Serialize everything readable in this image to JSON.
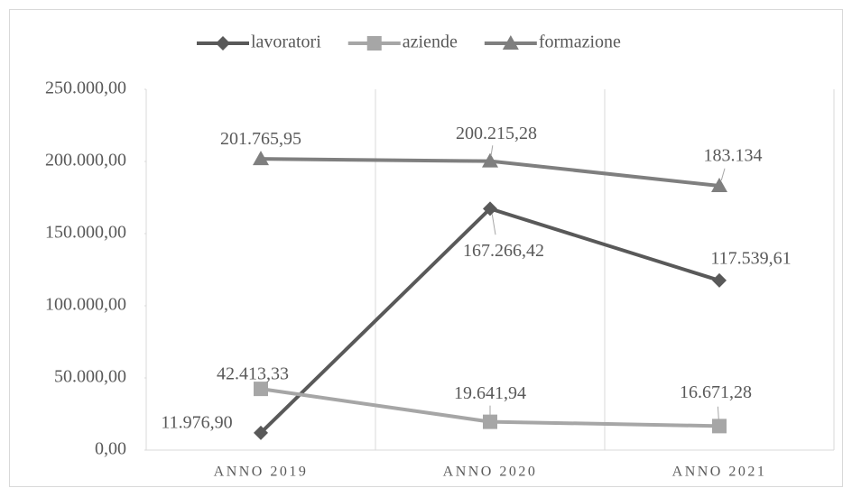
{
  "chart_data": {
    "type": "line",
    "categories": [
      "ANNO 2019",
      "ANNO 2020",
      "ANNO 2021"
    ],
    "series": [
      {
        "name": "lavoratori",
        "color": "#595959",
        "marker": "diamond",
        "values": [
          11976.9,
          167266.42,
          117539.61
        ],
        "value_labels": [
          "11.976,90",
          "167.266,42",
          "117.539,61"
        ]
      },
      {
        "name": "aziende",
        "color": "#a6a6a6",
        "marker": "square",
        "values": [
          42413.33,
          19641.94,
          16671.28
        ],
        "value_labels": [
          "42.413,33",
          "19.641,94",
          "16.671,28"
        ]
      },
      {
        "name": "formazione",
        "color": "#7f7f7f",
        "marker": "triangle",
        "values": [
          201765.95,
          200215.28,
          183134
        ],
        "value_labels": [
          "201.765,95",
          "200.215,28",
          "183.134"
        ]
      }
    ],
    "ylim": [
      0,
      250000
    ],
    "yticks": [
      {
        "value": 0,
        "label": "0,00"
      },
      {
        "value": 50000,
        "label": "50.000,00"
      },
      {
        "value": 100000,
        "label": "100.000,00"
      },
      {
        "value": 150000,
        "label": "150.000,00"
      },
      {
        "value": 200000,
        "label": "200.000,00"
      },
      {
        "value": 250000,
        "label": "250.000,00"
      }
    ],
    "legend": "top"
  }
}
